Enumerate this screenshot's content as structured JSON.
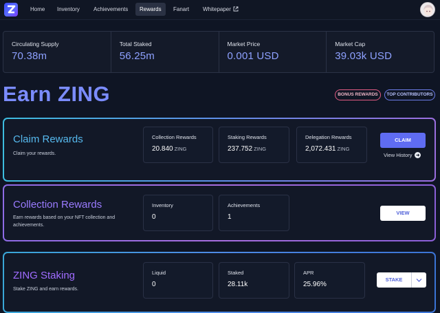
{
  "nav": {
    "items": [
      "Home",
      "Inventory",
      "Achievements",
      "Rewards",
      "Fanart",
      "Whitepaper"
    ],
    "active": "Rewards",
    "logo_icon": "z-logo-icon",
    "external_icon": "external-link-icon",
    "avatar_icon": "user-avatar"
  },
  "stats": [
    {
      "label": "Circulating Supply",
      "value": "70.38m"
    },
    {
      "label": "Total Staked",
      "value": "56.25m"
    },
    {
      "label": "Market Price",
      "value": "0.001 USD"
    },
    {
      "label": "Market Cap",
      "value": "39.03k USD"
    }
  ],
  "title": "Earn ZING",
  "pills": {
    "bonus": "BONUS REWARDS",
    "top": "TOP CONTRIBUTORS"
  },
  "claim": {
    "title": "Claim Rewards",
    "desc": "Claim your rewards.",
    "metrics": [
      {
        "label": "Collection Rewards",
        "value": "20.840",
        "unit": "ZING"
      },
      {
        "label": "Staking Rewards",
        "value": "237.752",
        "unit": "ZING"
      },
      {
        "label": "Delegation Rewards",
        "value": "2,072.431",
        "unit": "ZING"
      }
    ],
    "button": "CLAIM",
    "history": "View History"
  },
  "collection": {
    "title": "Collection Rewards",
    "desc": "Earn rewards based on your NFT collection and achievements.",
    "metrics": [
      {
        "label": "Inventory",
        "value": "0"
      },
      {
        "label": "Achievements",
        "value": "1"
      }
    ],
    "button": "VIEW"
  },
  "staking": {
    "title": "ZING Staking",
    "desc": "Stake ZING and earn rewards.",
    "metrics": [
      {
        "label": "Liquid",
        "value": "0"
      },
      {
        "label": "Staked",
        "value": "28.11k"
      },
      {
        "label": "APR",
        "value": "25.96%"
      }
    ],
    "button": "STAKE"
  },
  "colors": {
    "accent": "#7b8cff",
    "claim_button": "#5f6cf2",
    "background": "#0f1524"
  }
}
